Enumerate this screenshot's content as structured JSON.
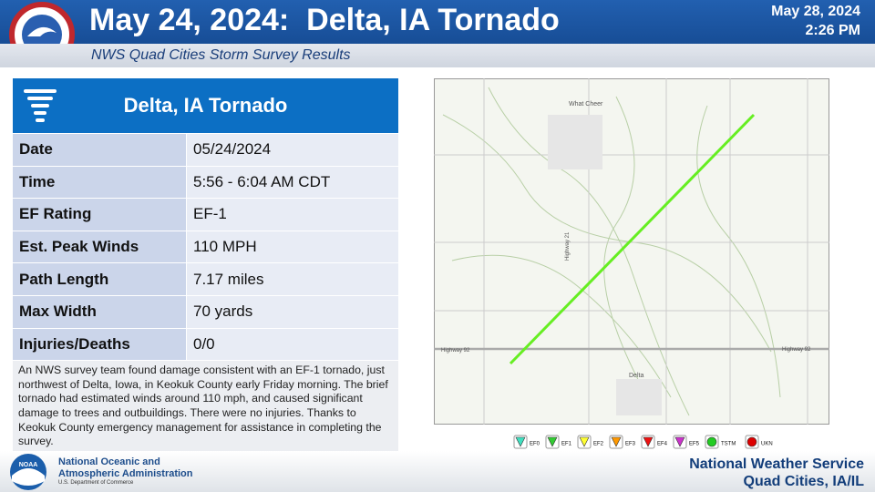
{
  "header": {
    "title": "May 24, 2024:  Delta, IA Tornado",
    "date": "May 28, 2024",
    "time": "2:26 PM",
    "subtitle": "NWS Quad Cities Storm Survey Results"
  },
  "table": {
    "title": "Delta, IA Tornado",
    "rows": [
      [
        "Date",
        "05/24/2024"
      ],
      [
        "Time",
        "5:56 - 6:04 AM CDT"
      ],
      [
        "EF Rating",
        "EF-1"
      ],
      [
        "Est. Peak Winds",
        "110 MPH"
      ],
      [
        "Path Length",
        "7.17 miles"
      ],
      [
        "Max Width",
        "70 yards"
      ],
      [
        "Injuries/Deaths",
        "0/0"
      ]
    ],
    "description": "An NWS survey team found damage consistent with an EF-1 tornado, just northwest of Delta, Iowa, in Keokuk County early Friday morning. The brief tornado had estimated winds around 110 mph, and caused significant damage to trees and outbuildings. There were no injuries. Thanks to Keokuk County emergency management for assistance in completing the survey."
  },
  "map": {
    "labels": [
      "What Cheer",
      "Delta",
      "Highway 92",
      "Highway 92",
      "Highway 21"
    ]
  },
  "legend": [
    {
      "label": "EF0",
      "color": "#40e0c0"
    },
    {
      "label": "EF1",
      "color": "#33cc33"
    },
    {
      "label": "EF2",
      "color": "#ffff33"
    },
    {
      "label": "EF3",
      "color": "#ff9900"
    },
    {
      "label": "EF4",
      "color": "#ee1111"
    },
    {
      "label": "EF5",
      "color": "#cc33cc"
    },
    {
      "label": "TSTM",
      "color": "#22cc22"
    },
    {
      "label": "UKN",
      "color": "#dd0000"
    }
  ],
  "footer": {
    "logo_text": "NOAA",
    "agency_lines": [
      "National Oceanic and",
      "Atmospheric Administration"
    ],
    "department": "U.S. Department of Commerce",
    "office_lines": [
      "National Weather Service",
      "Quad Cities, IA/IL"
    ]
  }
}
